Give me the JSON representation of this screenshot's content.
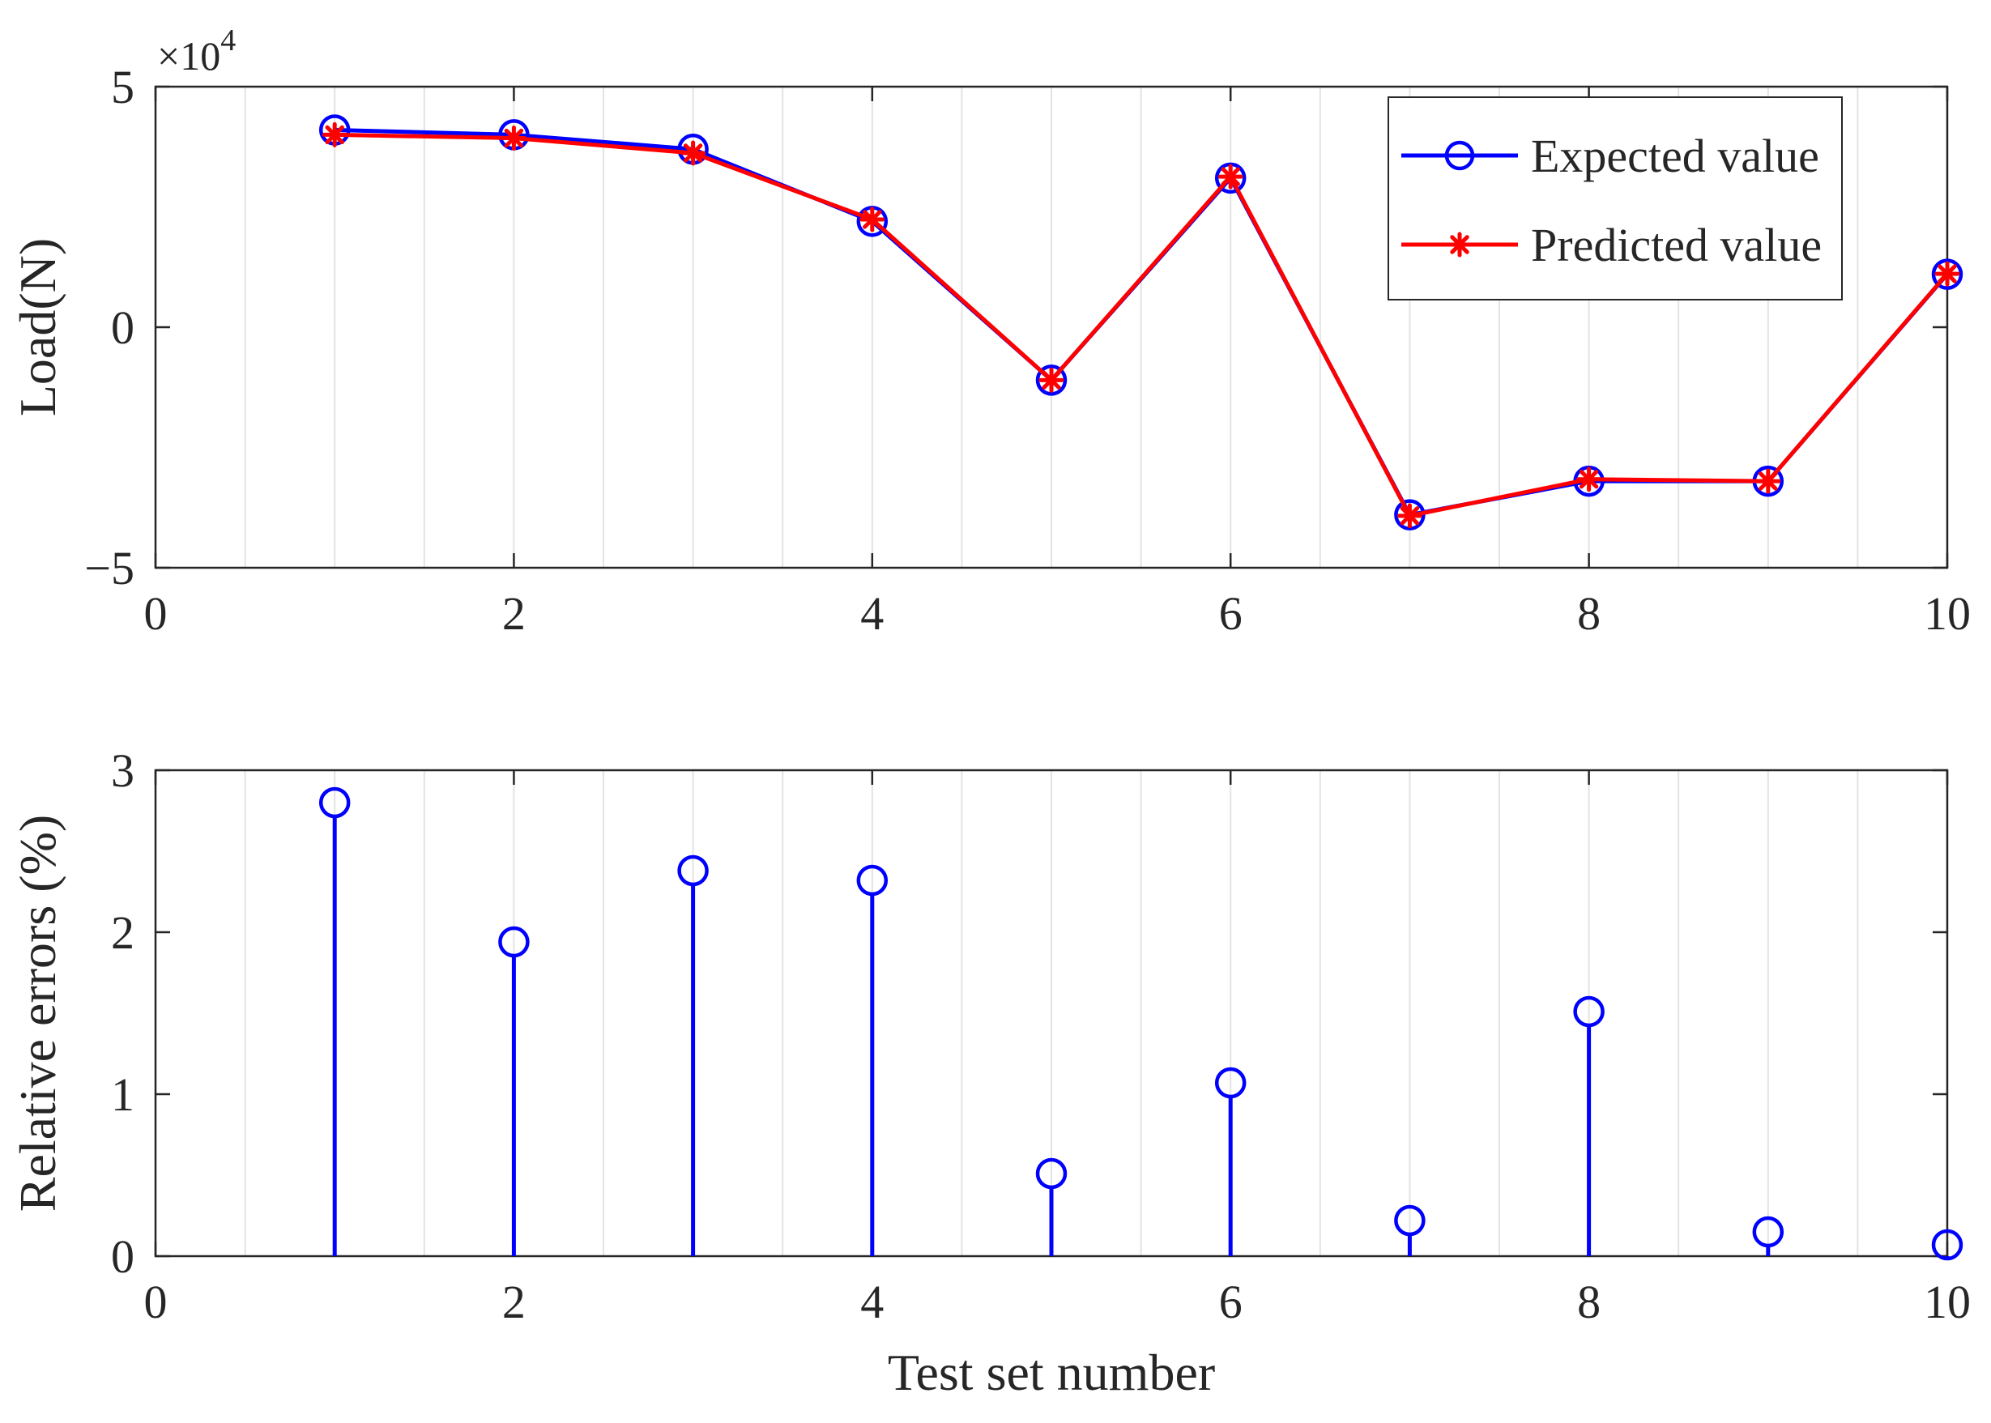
{
  "chart_data": [
    {
      "type": "line",
      "xlabel": "",
      "ylabel": "Load(N)",
      "y_exponent_label": "×10",
      "y_exponent_power": "4",
      "xlim": [
        0,
        10
      ],
      "ylim": [
        -50000,
        50000
      ],
      "x_ticks": [
        "0",
        "2",
        "4",
        "6",
        "8",
        "10"
      ],
      "y_ticks": [
        "−5",
        "0",
        "5"
      ],
      "grid": "vertical minor",
      "legend_position": "top-right",
      "x": [
        1,
        2,
        3,
        4,
        5,
        6,
        7,
        8,
        9,
        10
      ],
      "series": [
        {
          "name": "Expected value",
          "marker": "circle",
          "color": "#0000ff",
          "values": [
            41000,
            40000,
            37000,
            22000,
            -11000,
            31000,
            -39000,
            -32000,
            -32000,
            11000
          ]
        },
        {
          "name": "Predicted value",
          "marker": "asterisk",
          "color": "#ff0000",
          "values": [
            40000,
            39300,
            36200,
            22400,
            -11000,
            31300,
            -39200,
            -31600,
            -32000,
            11100
          ]
        }
      ]
    },
    {
      "type": "stem",
      "xlabel": "Test set number",
      "ylabel": "Relative errors (%)",
      "xlim": [
        0,
        10
      ],
      "ylim": [
        0,
        3
      ],
      "x_ticks": [
        "0",
        "2",
        "4",
        "6",
        "8",
        "10"
      ],
      "y_ticks": [
        "0",
        "1",
        "2",
        "3"
      ],
      "grid": "vertical minor",
      "color": "#0000ff",
      "x": [
        1,
        2,
        3,
        4,
        5,
        6,
        7,
        8,
        9,
        10
      ],
      "values": [
        2.8,
        1.94,
        2.38,
        2.32,
        0.51,
        1.07,
        0.22,
        1.51,
        0.15,
        0.07
      ]
    }
  ]
}
